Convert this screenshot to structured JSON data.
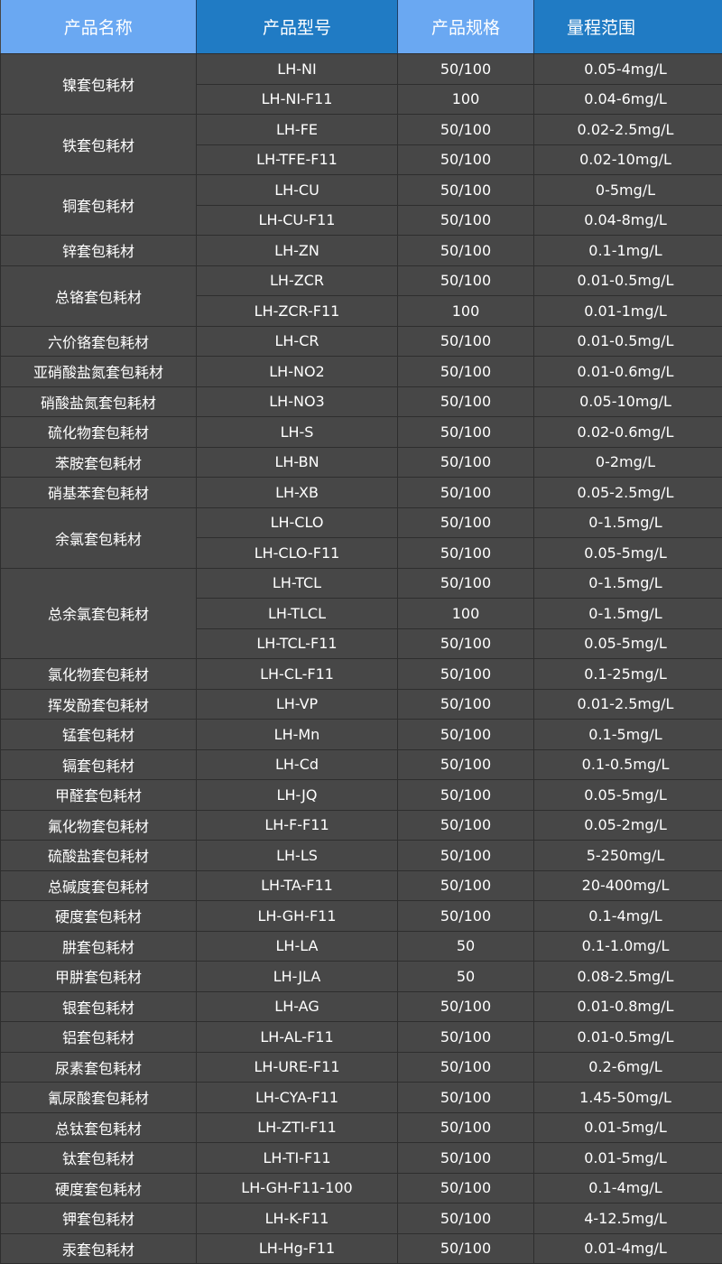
{
  "colors": {
    "header_light": "#6aa8f2",
    "header_dark": "#207bc4",
    "body_bg": "#474747",
    "border": "#2e2e2e",
    "text": "#ffffff"
  },
  "headers": [
    "产品名称",
    "产品型号",
    "产品规格",
    "量程范围"
  ],
  "groups": [
    {
      "name": "镍套包耗材",
      "rows": [
        [
          "LH-NI",
          "50/100",
          "0.05-4mg/L"
        ],
        [
          "LH-NI-F11",
          "100",
          "0.04-6mg/L"
        ]
      ]
    },
    {
      "name": "铁套包耗材",
      "rows": [
        [
          "LH-FE",
          "50/100",
          "0.02-2.5mg/L"
        ],
        [
          "LH-TFE-F11",
          "50/100",
          "0.02-10mg/L"
        ]
      ]
    },
    {
      "name": "铜套包耗材",
      "rows": [
        [
          "LH-CU",
          "50/100",
          "0-5mg/L"
        ],
        [
          "LH-CU-F11",
          "50/100",
          "0.04-8mg/L"
        ]
      ]
    },
    {
      "name": "锌套包耗材",
      "rows": [
        [
          "LH-ZN",
          "50/100",
          "0.1-1mg/L"
        ]
      ]
    },
    {
      "name": "总铬套包耗材",
      "rows": [
        [
          "LH-ZCR",
          "50/100",
          "0.01-0.5mg/L"
        ],
        [
          "LH-ZCR-F11",
          "100",
          "0.01-1mg/L"
        ]
      ]
    },
    {
      "name": "六价铬套包耗材",
      "rows": [
        [
          "LH-CR",
          "50/100",
          "0.01-0.5mg/L"
        ]
      ]
    },
    {
      "name": "亚硝酸盐氮套包耗材",
      "rows": [
        [
          "LH-NO2",
          "50/100",
          "0.01-0.6mg/L"
        ]
      ]
    },
    {
      "name": "硝酸盐氮套包耗材",
      "rows": [
        [
          "LH-NO3",
          "50/100",
          "0.05-10mg/L"
        ]
      ]
    },
    {
      "name": "硫化物套包耗材",
      "rows": [
        [
          "LH-S",
          "50/100",
          "0.02-0.6mg/L"
        ]
      ]
    },
    {
      "name": "苯胺套包耗材",
      "rows": [
        [
          "LH-BN",
          "50/100",
          "0-2mg/L"
        ]
      ]
    },
    {
      "name": "硝基苯套包耗材",
      "rows": [
        [
          "LH-XB",
          "50/100",
          "0.05-2.5mg/L"
        ]
      ]
    },
    {
      "name": "余氯套包耗材",
      "rows": [
        [
          "LH-CLO",
          "50/100",
          "0-1.5mg/L"
        ],
        [
          "LH-CLO-F11",
          "50/100",
          "0.05-5mg/L"
        ]
      ]
    },
    {
      "name": "总余氯套包耗材",
      "rows": [
        [
          "LH-TCL",
          "50/100",
          "0-1.5mg/L"
        ],
        [
          "LH-TLCL",
          "100",
          "0-1.5mg/L"
        ],
        [
          "LH-TCL-F11",
          "50/100",
          "0.05-5mg/L"
        ]
      ]
    },
    {
      "name": "氯化物套包耗材",
      "rows": [
        [
          "LH-CL-F11",
          "50/100",
          "0.1-25mg/L"
        ]
      ]
    },
    {
      "name": "挥发酚套包耗材",
      "rows": [
        [
          "LH-VP",
          "50/100",
          "0.01-2.5mg/L"
        ]
      ]
    },
    {
      "name": "锰套包耗材",
      "rows": [
        [
          "LH-Mn",
          "50/100",
          "0.1-5mg/L"
        ]
      ]
    },
    {
      "name": "镉套包耗材",
      "rows": [
        [
          "LH-Cd",
          "50/100",
          "0.1-0.5mg/L"
        ]
      ]
    },
    {
      "name": "甲醛套包耗材",
      "rows": [
        [
          "LH-JQ",
          "50/100",
          "0.05-5mg/L"
        ]
      ]
    },
    {
      "name": "氟化物套包耗材",
      "rows": [
        [
          "LH-F-F11",
          "50/100",
          "0.05-2mg/L"
        ]
      ]
    },
    {
      "name": "硫酸盐套包耗材",
      "rows": [
        [
          "LH-LS",
          "50/100",
          "5-250mg/L"
        ]
      ]
    },
    {
      "name": "总碱度套包耗材",
      "rows": [
        [
          "LH-TA-F11",
          "50/100",
          "20-400mg/L"
        ]
      ]
    },
    {
      "name": "硬度套包耗材",
      "rows": [
        [
          "LH-GH-F11",
          "50/100",
          "0.1-4mg/L"
        ]
      ]
    },
    {
      "name": "肼套包耗材",
      "rows": [
        [
          "LH-LA",
          "50",
          "0.1-1.0mg/L"
        ]
      ]
    },
    {
      "name": "甲肼套包耗材",
      "rows": [
        [
          "LH-JLA",
          "50",
          "0.08-2.5mg/L"
        ]
      ]
    },
    {
      "name": "银套包耗材",
      "rows": [
        [
          "LH-AG",
          "50/100",
          "0.01-0.8mg/L"
        ]
      ]
    },
    {
      "name": "铝套包耗材",
      "rows": [
        [
          "LH-AL-F11",
          "50/100",
          "0.01-0.5mg/L"
        ]
      ]
    },
    {
      "name": "尿素套包耗材",
      "rows": [
        [
          "LH-URE-F11",
          "50/100",
          "0.2-6mg/L"
        ]
      ]
    },
    {
      "name": "氰尿酸套包耗材",
      "rows": [
        [
          "LH-CYA-F11",
          "50/100",
          "1.45-50mg/L"
        ]
      ]
    },
    {
      "name": "总钛套包耗材",
      "rows": [
        [
          "LH-ZTI-F11",
          "50/100",
          "0.01-5mg/L"
        ]
      ]
    },
    {
      "name": "钛套包耗材",
      "rows": [
        [
          "LH-TI-F11",
          "50/100",
          "0.01-5mg/L"
        ]
      ]
    },
    {
      "name": "硬度套包耗材",
      "rows": [
        [
          "LH-GH-F11-100",
          "50/100",
          "0.1-4mg/L"
        ]
      ]
    },
    {
      "name": "钾套包耗材",
      "rows": [
        [
          "LH-K-F11",
          "50/100",
          "4-12.5mg/L"
        ]
      ]
    },
    {
      "name": "汞套包耗材",
      "rows": [
        [
          "LH-Hg-F11",
          "50/100",
          "0.01-4mg/L"
        ]
      ]
    }
  ]
}
